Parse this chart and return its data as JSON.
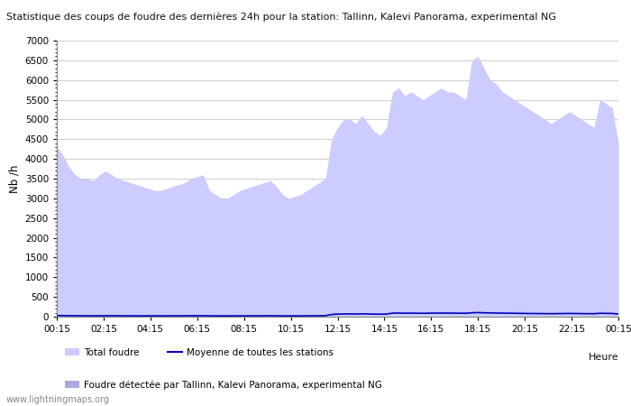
{
  "title": "Statistique des coups de foudre des dernières 24h pour la station: Tallinn, Kalevi Panorama, experimental NG",
  "ylabel": "Nb /h",
  "xlabel": "Heure",
  "watermark": "www.lightningmaps.org",
  "legend_total": "Total foudre",
  "legend_station": "Foudre détectée par Tallinn, Kalevi Panorama, experimental NG",
  "legend_mean": "Moyenne de toutes les stations",
  "x_labels": [
    "00:15",
    "02:15",
    "04:15",
    "06:15",
    "08:15",
    "10:15",
    "12:15",
    "14:15",
    "16:15",
    "18:15",
    "20:15",
    "22:15",
    "00:15"
  ],
  "ylim": [
    0,
    7000
  ],
  "yticks": [
    0,
    500,
    1000,
    1500,
    2000,
    2500,
    3000,
    3500,
    4000,
    4500,
    5000,
    5500,
    6000,
    6500,
    7000
  ],
  "fill_color": "#ccccff",
  "station_color": "#aaaadd",
  "mean_color": "#0000bb",
  "background_color": "#ffffff",
  "total_foudre": [
    4300,
    4100,
    3800,
    3600,
    3500,
    3500,
    3450,
    3600,
    3700,
    3600,
    3500,
    3450,
    3400,
    3350,
    3300,
    3250,
    3200,
    3200,
    3250,
    3300,
    3350,
    3400,
    3500,
    3550,
    3600,
    3200,
    3100,
    3000,
    3000,
    3100,
    3200,
    3250,
    3300,
    3350,
    3400,
    3450,
    3300,
    3100,
    3000,
    3050,
    3100,
    3200,
    3300,
    3400,
    3500,
    4500,
    4800,
    5000,
    5000,
    4900,
    5100,
    4900,
    4700,
    4600,
    4800,
    5700,
    5800,
    5600,
    5700,
    5600,
    5500,
    5600,
    5700,
    5800,
    5700,
    5700,
    5600,
    5500,
    6500,
    6600,
    6300,
    6000,
    5900,
    5700,
    5600,
    5500,
    5400,
    5300,
    5200,
    5100,
    5000,
    4900,
    5000,
    5100,
    5200,
    5100,
    5000,
    4900,
    4800,
    5500,
    5400,
    5300,
    4400
  ],
  "station_foudre": [
    0,
    0,
    0,
    0,
    0,
    0,
    0,
    0,
    0,
    0,
    0,
    0,
    0,
    0,
    0,
    0,
    0,
    0,
    0,
    0,
    0,
    0,
    0,
    0,
    0,
    0,
    0,
    0,
    0,
    0,
    0,
    0,
    0,
    0,
    0,
    0,
    0,
    0,
    0,
    0,
    0,
    0,
    0,
    0,
    0,
    0,
    0,
    0,
    0,
    0,
    0,
    0,
    0,
    0,
    0,
    0,
    0,
    0,
    0,
    0,
    0,
    0,
    0,
    0,
    0,
    0,
    0,
    0,
    0,
    0,
    0,
    0,
    0,
    0,
    0,
    0,
    0,
    0,
    0,
    0,
    0,
    0,
    0,
    0,
    0,
    0,
    0,
    0,
    0,
    0,
    0,
    0,
    0
  ],
  "mean_foudre": [
    30,
    28,
    26,
    25,
    24,
    23,
    22,
    23,
    24,
    25,
    24,
    23,
    22,
    22,
    22,
    22,
    22,
    22,
    22,
    23,
    23,
    23,
    24,
    24,
    25,
    22,
    21,
    20,
    20,
    21,
    22,
    22,
    23,
    23,
    24,
    24,
    23,
    21,
    20,
    21,
    21,
    22,
    23,
    24,
    25,
    55,
    65,
    70,
    70,
    68,
    72,
    68,
    65,
    63,
    67,
    90,
    92,
    88,
    90,
    88,
    86,
    88,
    90,
    92,
    90,
    90,
    88,
    86,
    100,
    104,
    99,
    95,
    92,
    90,
    88,
    86,
    84,
    82,
    80,
    79,
    78,
    76,
    78,
    80,
    82,
    80,
    78,
    76,
    75,
    86,
    84,
    82,
    68
  ]
}
